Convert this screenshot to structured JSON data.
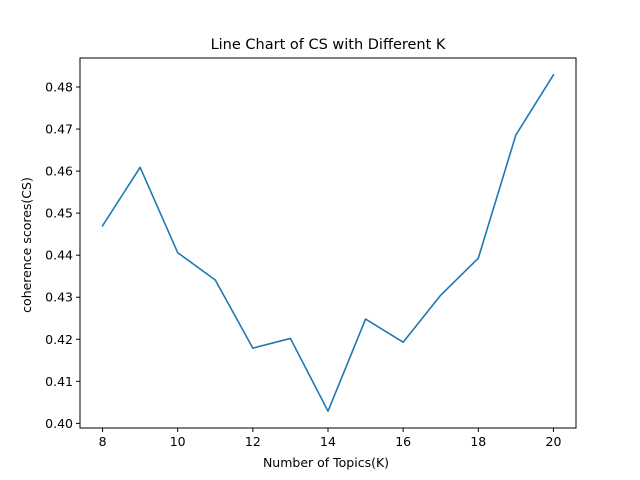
{
  "chart_data": {
    "type": "line",
    "title": "Line Chart of CS with Different K",
    "xlabel": "Number of Topics(K)",
    "ylabel": "coherence scores(CS)",
    "x": [
      8,
      9,
      10,
      11,
      12,
      13,
      14,
      15,
      16,
      17,
      18,
      19,
      20
    ],
    "series": [
      {
        "values": [
          0.447,
          0.4609,
          0.4406,
          0.4341,
          0.4179,
          0.4202,
          0.4029,
          0.4248,
          0.4193,
          0.4305,
          0.4393,
          0.4686,
          0.4829
        ],
        "color": "#1f77b4"
      }
    ],
    "xlim": [
      7.4,
      20.6
    ],
    "ylim": [
      0.3989,
      0.4869
    ],
    "xticks": [
      8,
      10,
      12,
      14,
      16,
      18,
      20
    ],
    "yticks": [
      0.4,
      0.41,
      0.42,
      0.43,
      0.44,
      0.45,
      0.46,
      0.47,
      0.48
    ],
    "xtick_labels": [
      "8",
      "10",
      "12",
      "14",
      "16",
      "18",
      "20"
    ],
    "ytick_labels": [
      "0.40",
      "0.41",
      "0.42",
      "0.43",
      "0.44",
      "0.45",
      "0.46",
      "0.47",
      "0.48"
    ],
    "grid": false,
    "legend": "none"
  }
}
